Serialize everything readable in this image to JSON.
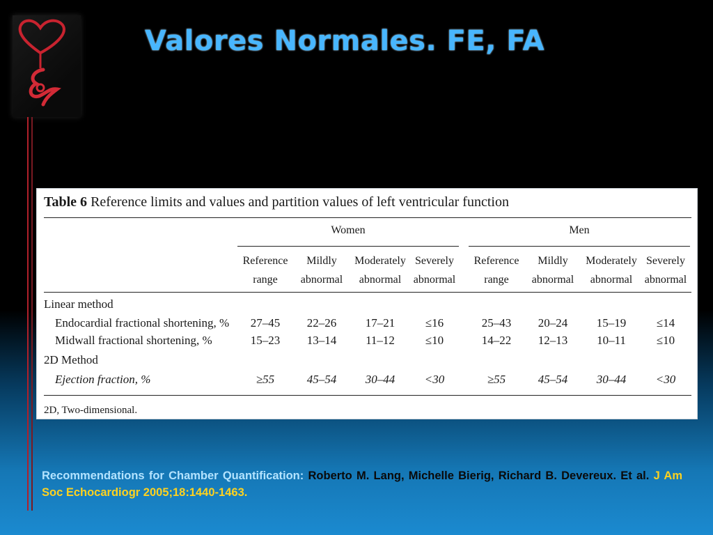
{
  "slide": {
    "title": "Valores Normales. FE, FA",
    "background_top": "#000000",
    "background_bottom": "#1b8ad0",
    "title_color": "#48b6ff",
    "logo_icon": "heart-figure-logo"
  },
  "table": {
    "caption_label": "Table 6",
    "caption_text": "Reference limits and values and partition values of left ventricular function",
    "groups": [
      "Women",
      "Men"
    ],
    "columns": [
      [
        "Reference",
        "range"
      ],
      [
        "Mildly",
        "abnormal"
      ],
      [
        "Moderately",
        "abnormal"
      ],
      [
        "Severely",
        "abnormal"
      ],
      [
        "Reference",
        "range"
      ],
      [
        "Mildly",
        "abnormal"
      ],
      [
        "Moderately",
        "abnormal"
      ],
      [
        "Severely",
        "abnormal"
      ]
    ],
    "sections": [
      {
        "heading": "Linear method",
        "rows": [
          {
            "label": "Endocardial fractional shortening, %",
            "italic": false,
            "values": [
              "27–45",
              "22–26",
              "17–21",
              "≤16",
              "25–43",
              "20–24",
              "15–19",
              "≤14"
            ]
          },
          {
            "label": "Midwall fractional shortening, %",
            "italic": false,
            "values": [
              "15–23",
              "13–14",
              "11–12",
              "≤10",
              "14–22",
              "12–13",
              "10–11",
              "≤10"
            ]
          }
        ]
      },
      {
        "heading": "2D Method",
        "rows": [
          {
            "label": "Ejection fraction, %",
            "italic": true,
            "values": [
              "≥55",
              "45–54",
              "30–44",
              "<30",
              "≥55",
              "45–54",
              "30–44",
              "<30"
            ]
          }
        ]
      }
    ],
    "footnote": "2D, Two-dimensional."
  },
  "citation": {
    "part1": "Recommendations for Chamber Quantification:",
    "part2": " Roberto M. Lang, Michelle Bierig, Richard B. Devereux. Et al. ",
    "part3": "J Am Soc Echocardiogr 2005;18:1440-1463."
  }
}
